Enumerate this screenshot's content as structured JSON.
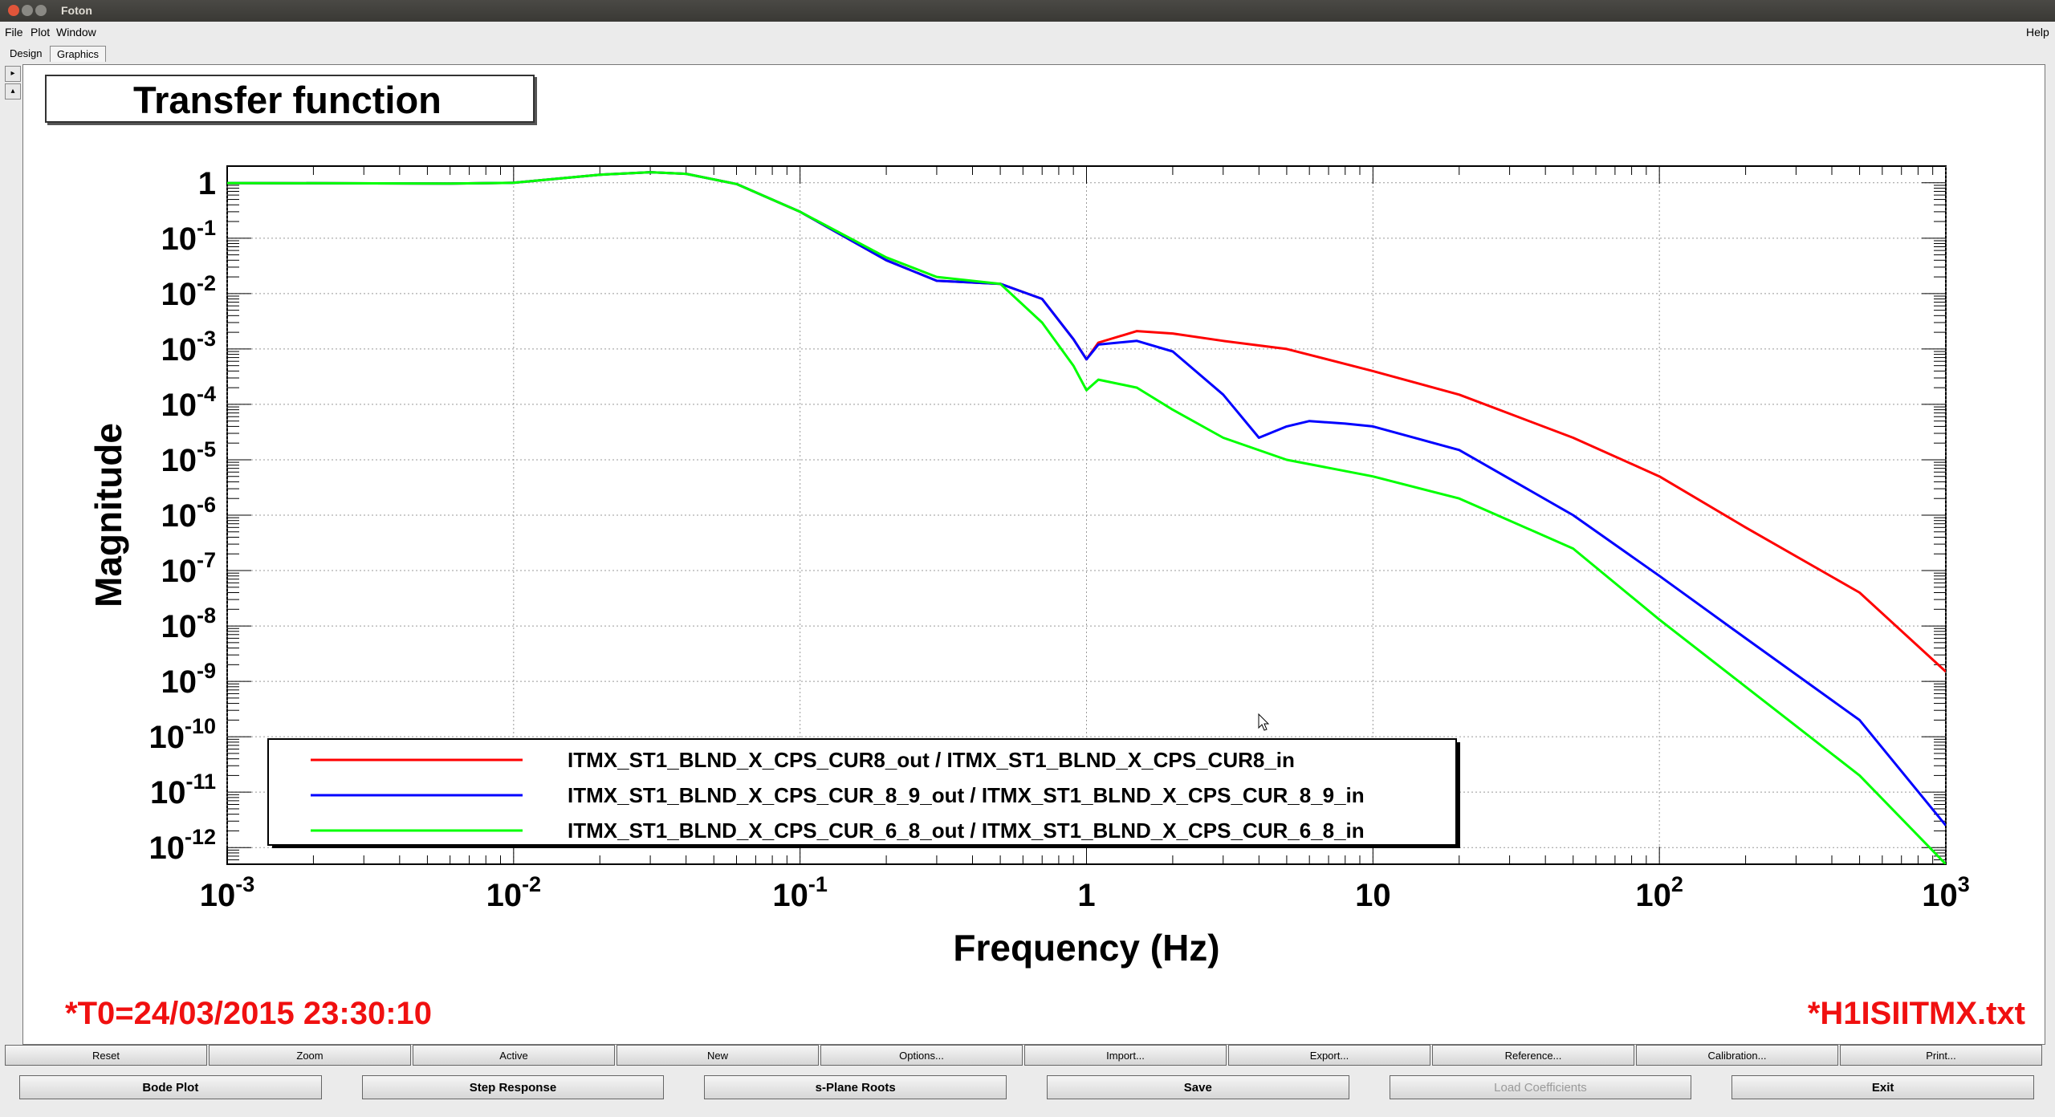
{
  "window": {
    "title": "Foton"
  },
  "menu": {
    "file": "File",
    "plot": "Plot",
    "window": "Window",
    "help": "Help"
  },
  "tabs": [
    "Design",
    "Graphics"
  ],
  "canvas": {
    "title": "Transfer function",
    "t0": "*T0=24/03/2015 23:30:10",
    "file": "*H1ISIITMX.txt"
  },
  "colors": {
    "red": "#ff0000",
    "blue": "#0000ff",
    "green": "#00ff00",
    "annotation": "#f01010"
  },
  "toolbar1": [
    "Reset",
    "Zoom",
    "Active",
    "New",
    "Options...",
    "Import...",
    "Export...",
    "Reference...",
    "Calibration...",
    "Print..."
  ],
  "toolbar2": [
    {
      "label": "Bode Plot",
      "enabled": true
    },
    {
      "label": "Step Response",
      "enabled": true
    },
    {
      "label": "s-Plane Roots",
      "enabled": true
    },
    {
      "label": "Save",
      "enabled": true
    },
    {
      "label": "Load Coefficients",
      "enabled": false
    },
    {
      "label": "Exit",
      "enabled": true
    }
  ],
  "chart_data": {
    "type": "line",
    "xlabel": "Frequency (Hz)",
    "ylabel": "Magnitude",
    "xscale": "log",
    "yscale": "log",
    "xlim": [
      0.001,
      1000
    ],
    "ylim": [
      5e-13,
      2
    ],
    "grid": true,
    "legend_position": "bottom-left",
    "x_ticks": [
      {
        "base": "10",
        "exp": "-3",
        "value": 0.001
      },
      {
        "base": "10",
        "exp": "-2",
        "value": 0.01
      },
      {
        "base": "10",
        "exp": "-1",
        "value": 0.1
      },
      {
        "base": "1",
        "exp": "",
        "value": 1
      },
      {
        "base": "10",
        "exp": "",
        "value": 10
      },
      {
        "base": "10",
        "exp": "2",
        "value": 100
      },
      {
        "base": "10",
        "exp": "3",
        "value": 1000
      }
    ],
    "y_ticks": [
      {
        "base": "1",
        "exp": "",
        "value": 1
      },
      {
        "base": "10",
        "exp": "-1",
        "value": 0.1
      },
      {
        "base": "10",
        "exp": "-2",
        "value": 0.01
      },
      {
        "base": "10",
        "exp": "-3",
        "value": 0.001
      },
      {
        "base": "10",
        "exp": "-4",
        "value": 0.0001
      },
      {
        "base": "10",
        "exp": "-5",
        "value": 1e-05
      },
      {
        "base": "10",
        "exp": "-6",
        "value": 1e-06
      },
      {
        "base": "10",
        "exp": "-7",
        "value": 1e-07
      },
      {
        "base": "10",
        "exp": "-8",
        "value": 1e-08
      },
      {
        "base": "10",
        "exp": "-9",
        "value": 1e-09
      },
      {
        "base": "10",
        "exp": "-10",
        "value": 1e-10
      },
      {
        "base": "10",
        "exp": "-11",
        "value": 1e-11
      },
      {
        "base": "10",
        "exp": "-12",
        "value": 1e-12
      }
    ],
    "series": [
      {
        "name": "ITMX_ST1_BLND_X_CPS_CUR8_out / ITMX_ST1_BLND_X_CPS_CUR8_in",
        "color": "#ff0000",
        "x": [
          0.001,
          0.006,
          0.01,
          0.02,
          0.03,
          0.04,
          0.06,
          0.1,
          0.2,
          0.3,
          0.5,
          0.7,
          0.9,
          1.0,
          1.1,
          1.5,
          2,
          3,
          5,
          10,
          20,
          50,
          100,
          200,
          500,
          1000
        ],
        "y": [
          0.99,
          0.97,
          1.0,
          1.4,
          1.55,
          1.45,
          0.95,
          0.3,
          0.04,
          0.017,
          0.015,
          0.008,
          0.0015,
          0.00065,
          0.0013,
          0.0021,
          0.0019,
          0.0014,
          0.001,
          0.0004,
          0.00015,
          2.5e-05,
          5e-06,
          6e-07,
          4e-08,
          1.5e-09
        ]
      },
      {
        "name": "ITMX_ST1_BLND_X_CPS_CUR_8_9_out / ITMX_ST1_BLND_X_CPS_CUR_8_9_in",
        "color": "#0000ff",
        "x": [
          0.001,
          0.006,
          0.01,
          0.02,
          0.03,
          0.04,
          0.06,
          0.1,
          0.2,
          0.3,
          0.5,
          0.7,
          0.9,
          1.0,
          1.1,
          1.5,
          2,
          3,
          4,
          5,
          6,
          8,
          10,
          20,
          50,
          100,
          200,
          500,
          1000
        ],
        "y": [
          0.99,
          0.97,
          1.0,
          1.4,
          1.55,
          1.45,
          0.95,
          0.3,
          0.04,
          0.017,
          0.015,
          0.008,
          0.0015,
          0.00065,
          0.0012,
          0.0014,
          0.0009,
          0.00015,
          2.5e-05,
          4e-05,
          5e-05,
          4.5e-05,
          4e-05,
          1.5e-05,
          1e-06,
          8e-08,
          6e-09,
          2e-10,
          2.5e-12
        ]
      },
      {
        "name": "ITMX_ST1_BLND_X_CPS_CUR_6_8_out / ITMX_ST1_BLND_X_CPS_CUR_6_8_in",
        "color": "#00ff00",
        "x": [
          0.001,
          0.006,
          0.01,
          0.02,
          0.03,
          0.04,
          0.06,
          0.1,
          0.2,
          0.3,
          0.5,
          0.7,
          0.9,
          1.0,
          1.1,
          1.5,
          2,
          3,
          5,
          10,
          20,
          50,
          100,
          200,
          500,
          1000
        ],
        "y": [
          0.99,
          0.97,
          1.0,
          1.4,
          1.55,
          1.45,
          0.95,
          0.3,
          0.045,
          0.02,
          0.015,
          0.003,
          0.0005,
          0.00018,
          0.00028,
          0.0002,
          8e-05,
          2.5e-05,
          1e-05,
          5e-06,
          2e-06,
          2.5e-07,
          1.3e-08,
          8e-10,
          2e-11,
          5e-13
        ]
      }
    ]
  }
}
